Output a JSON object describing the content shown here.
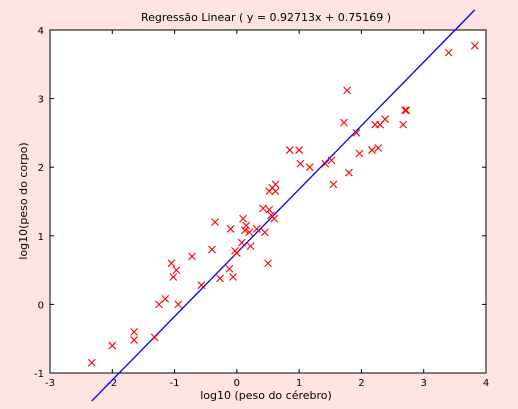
{
  "chart_data": {
    "type": "scatter",
    "title": "Regressão Linear ( y = 0.92713x + 0.75169 )",
    "xlabel": "log10 (peso do cérebro)",
    "ylabel": "log10(peso do corpo)",
    "xlim": [
      -3,
      4
    ],
    "ylim": [
      -1,
      4
    ],
    "xticks": [
      -3,
      -2,
      -1,
      0,
      1,
      2,
      3,
      4
    ],
    "yticks": [
      -1,
      0,
      1,
      2,
      3,
      4
    ],
    "grid": false,
    "colors": {
      "points": "#ff0000",
      "line": "#0000ff",
      "plot_background": "#ffffff",
      "figure_background": "#ffe4e1"
    },
    "series": [
      {
        "kind": "scatter",
        "marker": "x",
        "x": [
          -2.33,
          -2.0,
          -1.65,
          -1.65,
          -1.32,
          -1.25,
          -1.15,
          -1.05,
          -1.02,
          -0.97,
          -0.94,
          -0.72,
          -0.57,
          -0.4,
          -0.35,
          -0.27,
          -0.12,
          -0.1,
          -0.06,
          -0.03,
          0.0,
          0.08,
          0.1,
          0.13,
          0.15,
          0.2,
          0.22,
          0.32,
          0.42,
          0.45,
          0.5,
          0.52,
          0.52,
          0.55,
          0.57,
          0.6,
          0.62,
          0.62,
          0.85,
          1.0,
          1.02,
          1.17,
          1.42,
          1.52,
          1.55,
          1.72,
          1.77,
          1.8,
          1.92,
          1.97,
          2.17,
          2.22,
          2.27,
          2.3,
          2.38,
          2.67,
          2.7,
          2.72,
          3.4,
          3.82
        ],
        "y": [
          -0.85,
          -0.6,
          -0.52,
          -0.4,
          -0.48,
          0.0,
          0.08,
          0.6,
          0.4,
          0.5,
          0.0,
          0.7,
          0.28,
          0.8,
          1.2,
          0.38,
          0.52,
          1.1,
          0.4,
          0.78,
          0.75,
          0.9,
          1.25,
          1.08,
          1.15,
          1.05,
          0.85,
          1.1,
          1.4,
          1.05,
          0.6,
          1.38,
          1.65,
          1.3,
          1.7,
          1.25,
          1.75,
          1.65,
          2.25,
          2.25,
          2.05,
          2.0,
          2.05,
          2.1,
          1.75,
          2.65,
          3.12,
          1.92,
          2.5,
          2.2,
          2.25,
          2.62,
          2.28,
          2.62,
          2.7,
          2.62,
          2.83,
          2.83,
          3.67,
          3.77
        ]
      },
      {
        "kind": "line",
        "slope": 0.92713,
        "intercept": 0.75169,
        "x_range": [
          -2.33,
          3.82
        ]
      }
    ]
  }
}
